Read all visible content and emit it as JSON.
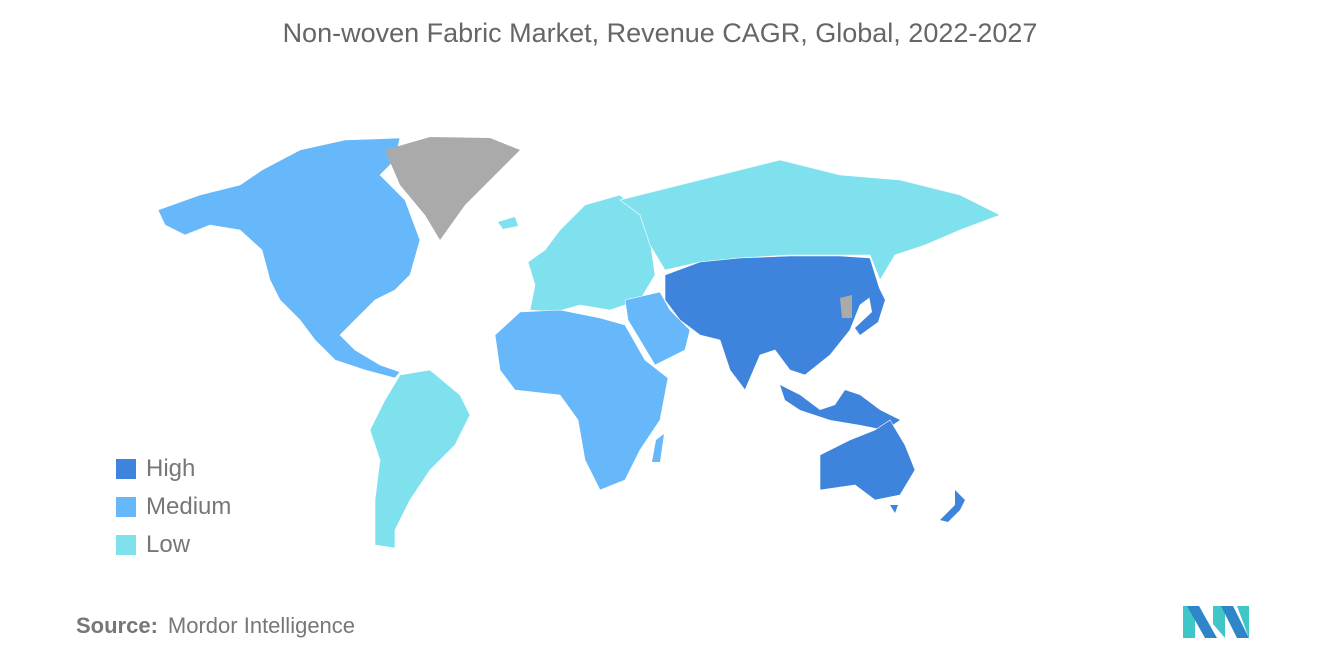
{
  "title": "Non-woven Fabric Market, Revenue CAGR, Global, 2022-2027",
  "legend": [
    {
      "label": "High",
      "color": "#3E84DC"
    },
    {
      "label": "Medium",
      "color": "#66B8FA"
    },
    {
      "label": "Low",
      "color": "#7FE0EE"
    }
  ],
  "no_data_color": "#AAAAAA",
  "regions": {
    "north_america": "Medium",
    "south_america": "Low",
    "europe": "Low",
    "russia": "Low",
    "africa": "Medium",
    "middle_east": "Medium",
    "asia": "High",
    "japan": "High",
    "southeast_asia": "High",
    "australia": "High",
    "new_zealand": "High",
    "greenland": "No data"
  },
  "source": {
    "label": "Source:",
    "value": "Mordor Intelligence"
  },
  "logo_colors": [
    "#2E86C8",
    "#3FC6C6"
  ]
}
